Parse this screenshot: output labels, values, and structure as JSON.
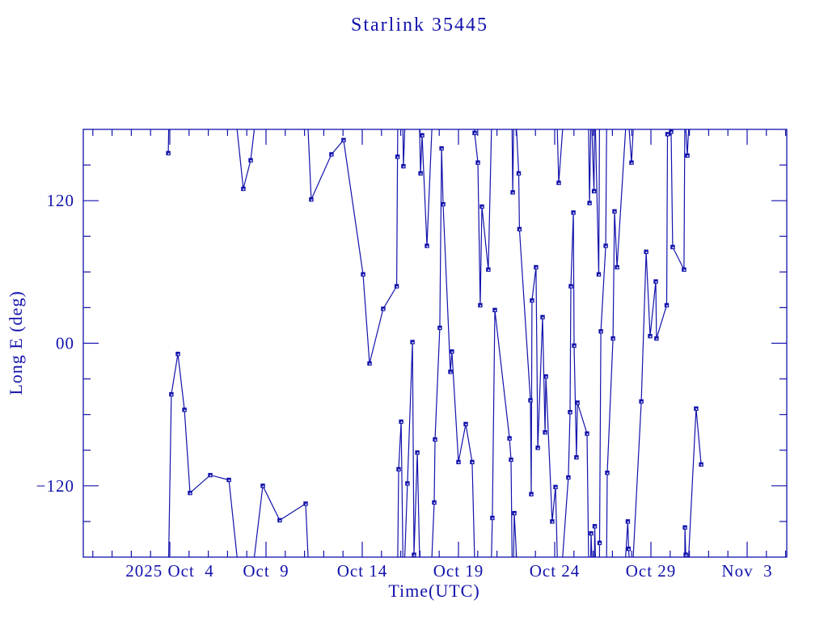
{
  "title": "Starlink 35445",
  "colors": {
    "accent": "#1212AC",
    "background": "#FFFFFF"
  },
  "chart_data": {
    "type": "line",
    "title": "Starlink 35445",
    "xlabel": "Time(UTC)",
    "ylabel": "Long E (deg)",
    "marker": "filled-square-with-center-dot",
    "grid": false,
    "legend": null,
    "x_unit": "days since 2025 Oct 4 00:00 UTC",
    "xlim": [
      -4.5,
      32.06
    ],
    "ylim": [
      -180,
      180
    ],
    "x_minor_step_days": 1,
    "y_minor_step_deg": 30,
    "wrap_at_deg": 180,
    "x_major_ticks": [
      {
        "day": 0,
        "label": "2025 Oct  4"
      },
      {
        "day": 5,
        "label": "Oct  9"
      },
      {
        "day": 10,
        "label": "Oct 14"
      },
      {
        "day": 15,
        "label": "Oct 19"
      },
      {
        "day": 20,
        "label": "Oct 24"
      },
      {
        "day": 25,
        "label": "Oct 29"
      },
      {
        "day": 30,
        "label": "Nov  3"
      }
    ],
    "y_major_ticks": [
      {
        "deg": 120,
        "label": "120"
      },
      {
        "deg": 0,
        "label": "00"
      },
      {
        "deg": -120,
        "label": "−120"
      }
    ],
    "series": [
      {
        "name": "Long E (deg)",
        "points": [
          [
            -0.08,
            160
          ],
          [
            0.08,
            -43
          ],
          [
            0.42,
            -9
          ],
          [
            0.76,
            -56
          ],
          [
            1.05,
            -126
          ],
          [
            2.1,
            -111
          ],
          [
            3.07,
            -115
          ],
          [
            3.82,
            130
          ],
          [
            4.2,
            154
          ],
          [
            4.83,
            -120
          ],
          [
            5.71,
            -149
          ],
          [
            7.06,
            -135
          ],
          [
            7.35,
            121
          ],
          [
            8.4,
            159
          ],
          [
            9.03,
            171
          ],
          [
            10.04,
            58
          ],
          [
            10.38,
            -17
          ],
          [
            11.09,
            29
          ],
          [
            11.79,
            48
          ],
          [
            11.83,
            157
          ],
          [
            11.89,
            -106
          ],
          [
            12.02,
            -66
          ],
          [
            12.14,
            149
          ],
          [
            12.35,
            -118
          ],
          [
            12.61,
            1
          ],
          [
            12.69,
            -178
          ],
          [
            12.86,
            -92
          ],
          [
            13.03,
            143
          ],
          [
            13.11,
            175
          ],
          [
            13.36,
            82
          ],
          [
            13.74,
            -134
          ],
          [
            13.78,
            -81
          ],
          [
            14.03,
            13
          ],
          [
            14.12,
            164
          ],
          [
            14.2,
            117
          ],
          [
            14.58,
            -24
          ],
          [
            14.66,
            -7
          ],
          [
            15.0,
            -100
          ],
          [
            15.38,
            -68
          ],
          [
            15.71,
            -100
          ],
          [
            15.84,
            177
          ],
          [
            16.01,
            152
          ],
          [
            16.13,
            32
          ],
          [
            16.22,
            115
          ],
          [
            16.55,
            62
          ],
          [
            16.76,
            -147
          ],
          [
            16.89,
            28
          ],
          [
            17.65,
            -80
          ],
          [
            17.73,
            -98
          ],
          [
            17.82,
            127
          ],
          [
            17.9,
            -143
          ],
          [
            18.13,
            143
          ],
          [
            18.17,
            96
          ],
          [
            18.74,
            -48
          ],
          [
            18.78,
            -127
          ],
          [
            18.82,
            36
          ],
          [
            19.03,
            64
          ],
          [
            19.12,
            -88
          ],
          [
            19.37,
            22
          ],
          [
            19.5,
            -75
          ],
          [
            19.54,
            -28
          ],
          [
            19.87,
            -150
          ],
          [
            20.04,
            -121
          ],
          [
            20.21,
            135
          ],
          [
            20.71,
            -113
          ],
          [
            20.8,
            -58
          ],
          [
            20.84,
            48
          ],
          [
            20.97,
            110
          ],
          [
            21.01,
            -2
          ],
          [
            21.13,
            -96
          ],
          [
            21.18,
            -50
          ],
          [
            21.68,
            -76
          ],
          [
            21.81,
            118
          ],
          [
            21.89,
            -160
          ],
          [
            22.04,
            128
          ],
          [
            22.08,
            -154
          ],
          [
            22.29,
            58
          ],
          [
            22.33,
            -168
          ],
          [
            22.4,
            10
          ],
          [
            22.65,
            82
          ],
          [
            22.73,
            -109
          ],
          [
            23.03,
            4
          ],
          [
            23.11,
            111
          ],
          [
            23.24,
            64
          ],
          [
            23.8,
            -150
          ],
          [
            23.84,
            -173
          ],
          [
            23.99,
            152
          ],
          [
            24.5,
            -49
          ],
          [
            24.75,
            77
          ],
          [
            24.96,
            6
          ],
          [
            25.25,
            52
          ],
          [
            25.29,
            4
          ],
          [
            25.82,
            32
          ],
          [
            25.86,
            176
          ],
          [
            26.05,
            178
          ],
          [
            26.13,
            81
          ],
          [
            26.72,
            62
          ],
          [
            26.77,
            -155
          ],
          [
            26.81,
            -178
          ],
          [
            26.89,
            158
          ],
          [
            27.35,
            -55
          ],
          [
            27.61,
            -102
          ]
        ]
      }
    ]
  }
}
